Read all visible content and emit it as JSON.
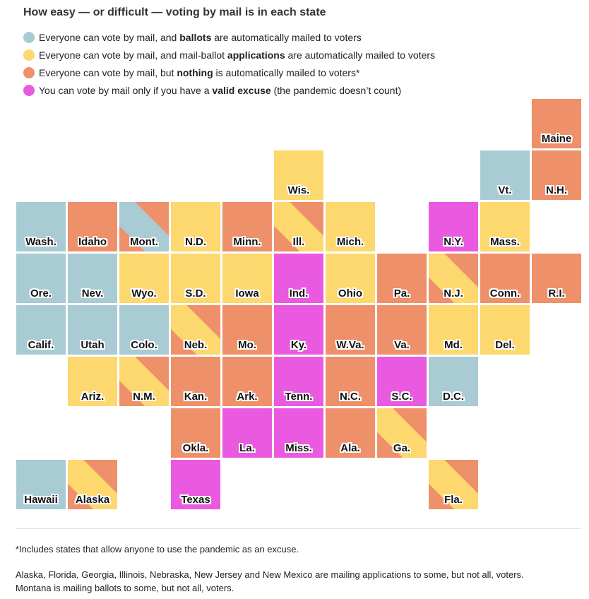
{
  "title": "How easy — or difficult — voting by mail is in each state",
  "legend": [
    {
      "key": "ballots",
      "color": "#a9cbd3",
      "pre": "Everyone can vote by mail, and ",
      "bold": "ballots",
      "post": " are automatically mailed to voters"
    },
    {
      "key": "applications",
      "color": "#fdd86e",
      "pre": "Everyone can vote by mail, and mail-ballot ",
      "bold": "applications",
      "post": " are automatically mailed to voters"
    },
    {
      "key": "nothing",
      "color": "#ee906a",
      "pre": "Everyone can vote by mail, but ",
      "bold": "nothing",
      "post": " is automatically mailed to voters*"
    },
    {
      "key": "excuse",
      "color": "#e95ae0",
      "pre": "You can vote by mail only if you have a ",
      "bold": "valid excuse",
      "post": " (the pandemic doesn’t count)"
    }
  ],
  "colors": {
    "ballots": "#a9cbd3",
    "applications": "#fdd86e",
    "nothing": "#ee906a",
    "excuse": "#e95ae0"
  },
  "states": [
    {
      "label": "Maine",
      "row": 0,
      "col": 10,
      "category": "nothing"
    },
    {
      "label": "Wis.",
      "row": 1,
      "col": 5,
      "category": "applications"
    },
    {
      "label": "Vt.",
      "row": 1,
      "col": 9,
      "category": "ballots"
    },
    {
      "label": "N.H.",
      "row": 1,
      "col": 10,
      "category": "nothing"
    },
    {
      "label": "Wash.",
      "row": 2,
      "col": 0,
      "category": "ballots"
    },
    {
      "label": "Idaho",
      "row": 2,
      "col": 1,
      "category": "nothing"
    },
    {
      "label": "Mont.",
      "row": 2,
      "col": 2,
      "category": "nothing",
      "partial": "ballots"
    },
    {
      "label": "N.D.",
      "row": 2,
      "col": 3,
      "category": "applications"
    },
    {
      "label": "Minn.",
      "row": 2,
      "col": 4,
      "category": "nothing"
    },
    {
      "label": "Ill.",
      "row": 2,
      "col": 5,
      "category": "nothing",
      "partial": "applications"
    },
    {
      "label": "Mich.",
      "row": 2,
      "col": 6,
      "category": "applications"
    },
    {
      "label": "N.Y.",
      "row": 2,
      "col": 8,
      "category": "excuse"
    },
    {
      "label": "Mass.",
      "row": 2,
      "col": 9,
      "category": "applications"
    },
    {
      "label": "Ore.",
      "row": 3,
      "col": 0,
      "category": "ballots"
    },
    {
      "label": "Nev.",
      "row": 3,
      "col": 1,
      "category": "ballots"
    },
    {
      "label": "Wyo.",
      "row": 3,
      "col": 2,
      "category": "applications"
    },
    {
      "label": "S.D.",
      "row": 3,
      "col": 3,
      "category": "applications"
    },
    {
      "label": "Iowa",
      "row": 3,
      "col": 4,
      "category": "applications"
    },
    {
      "label": "Ind.",
      "row": 3,
      "col": 5,
      "category": "excuse"
    },
    {
      "label": "Ohio",
      "row": 3,
      "col": 6,
      "category": "applications"
    },
    {
      "label": "Pa.",
      "row": 3,
      "col": 7,
      "category": "nothing"
    },
    {
      "label": "N.J.",
      "row": 3,
      "col": 8,
      "category": "nothing",
      "partial": "applications"
    },
    {
      "label": "Conn.",
      "row": 3,
      "col": 9,
      "category": "nothing"
    },
    {
      "label": "R.I.",
      "row": 3,
      "col": 10,
      "category": "nothing"
    },
    {
      "label": "Calif.",
      "row": 4,
      "col": 0,
      "category": "ballots"
    },
    {
      "label": "Utah",
      "row": 4,
      "col": 1,
      "category": "ballots"
    },
    {
      "label": "Colo.",
      "row": 4,
      "col": 2,
      "category": "ballots"
    },
    {
      "label": "Neb.",
      "row": 4,
      "col": 3,
      "category": "nothing",
      "partial": "applications"
    },
    {
      "label": "Mo.",
      "row": 4,
      "col": 4,
      "category": "nothing"
    },
    {
      "label": "Ky.",
      "row": 4,
      "col": 5,
      "category": "excuse"
    },
    {
      "label": "W.Va.",
      "row": 4,
      "col": 6,
      "category": "nothing"
    },
    {
      "label": "Va.",
      "row": 4,
      "col": 7,
      "category": "nothing"
    },
    {
      "label": "Md.",
      "row": 4,
      "col": 8,
      "category": "applications"
    },
    {
      "label": "Del.",
      "row": 4,
      "col": 9,
      "category": "applications"
    },
    {
      "label": "Ariz.",
      "row": 5,
      "col": 1,
      "category": "applications"
    },
    {
      "label": "N.M.",
      "row": 5,
      "col": 2,
      "category": "nothing",
      "partial": "applications"
    },
    {
      "label": "Kan.",
      "row": 5,
      "col": 3,
      "category": "nothing"
    },
    {
      "label": "Ark.",
      "row": 5,
      "col": 4,
      "category": "nothing"
    },
    {
      "label": "Tenn.",
      "row": 5,
      "col": 5,
      "category": "excuse"
    },
    {
      "label": "N.C.",
      "row": 5,
      "col": 6,
      "category": "nothing"
    },
    {
      "label": "S.C.",
      "row": 5,
      "col": 7,
      "category": "excuse"
    },
    {
      "label": "D.C.",
      "row": 5,
      "col": 8,
      "category": "ballots"
    },
    {
      "label": "Okla.",
      "row": 6,
      "col": 3,
      "category": "nothing"
    },
    {
      "label": "La.",
      "row": 6,
      "col": 4,
      "category": "excuse"
    },
    {
      "label": "Miss.",
      "row": 6,
      "col": 5,
      "category": "excuse"
    },
    {
      "label": "Ala.",
      "row": 6,
      "col": 6,
      "category": "nothing"
    },
    {
      "label": "Ga.",
      "row": 6,
      "col": 7,
      "category": "nothing",
      "partial": "applications"
    },
    {
      "label": "Hawaii",
      "row": 7,
      "col": 0,
      "category": "ballots"
    },
    {
      "label": "Alaska",
      "row": 7,
      "col": 1,
      "category": "nothing",
      "partial": "applications"
    },
    {
      "label": "Texas",
      "row": 7,
      "col": 3,
      "category": "excuse"
    },
    {
      "label": "Fla.",
      "row": 7,
      "col": 8,
      "category": "nothing",
      "partial": "applications"
    }
  ],
  "footnote": "*Includes states that allow anyone to use the pandemic as an excuse.",
  "notes": [
    "Alaska, Florida, Georgia, Illinois, Nebraska, New Jersey and New Mexico are mailing applications to some, but not all, voters.",
    "Montana is mailing ballots to some, but not all, voters."
  ]
}
